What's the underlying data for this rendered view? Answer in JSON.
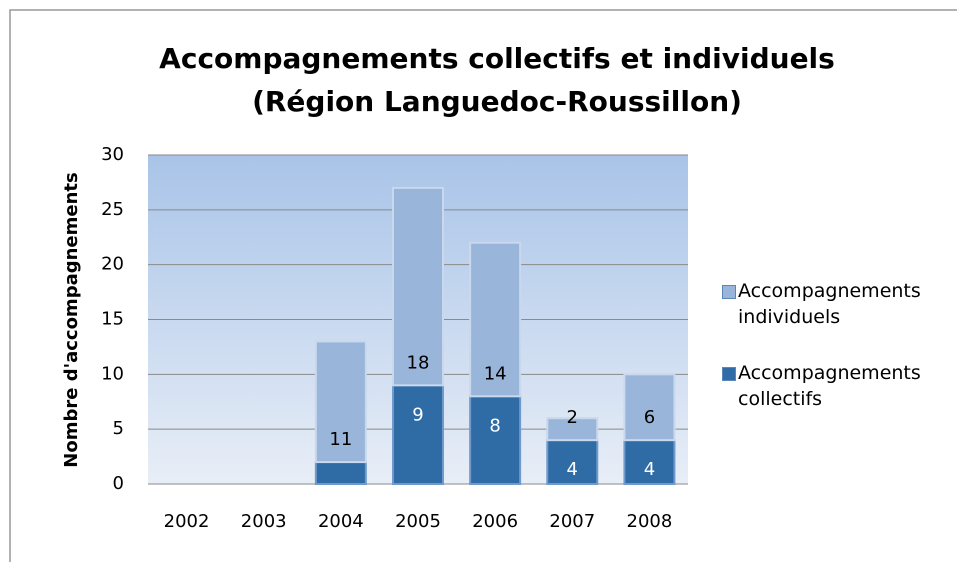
{
  "chart_data": {
    "type": "stacked_bar",
    "title": "Accompagnements collectifs et individuels",
    "subtitle": "(Région Languedoc-Roussillon)",
    "y_label": "Nombre d'accompagnements",
    "categories": [
      "2002",
      "2003",
      "2004",
      "2005",
      "2006",
      "2007",
      "2008"
    ],
    "series": [
      {
        "name": "Accompagnements collectifs",
        "color": "#2f6ca6",
        "values": [
          null,
          null,
          2,
          9,
          8,
          4,
          4
        ],
        "value_labels": [
          null,
          null,
          null,
          "9",
          "8",
          "4",
          "4"
        ]
      },
      {
        "name": "Accompagnements individuels",
        "color": "#9ab5da",
        "values": [
          null,
          null,
          11,
          18,
          14,
          2,
          6
        ],
        "value_labels": [
          null,
          null,
          "11",
          "18",
          "14",
          "2",
          "6"
        ]
      }
    ],
    "ylim": [
      0,
      30
    ],
    "yticks": [
      0,
      5,
      10,
      15,
      20,
      25,
      30
    ],
    "grid": true,
    "legend": "right"
  }
}
